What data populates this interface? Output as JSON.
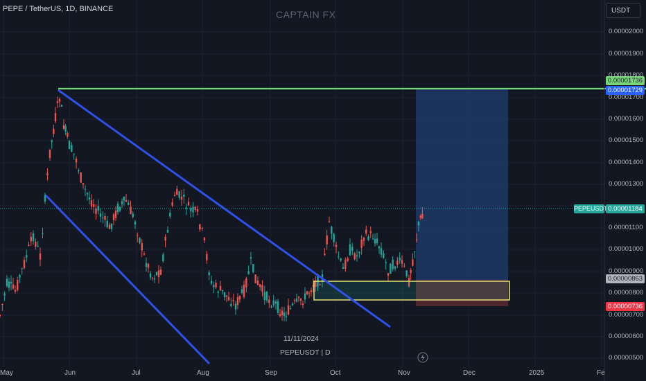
{
  "header": {
    "symbol_title": "PEPE / TetherUS, 1D, BINANCE",
    "watermark": "CAPTAIN FX",
    "currency": "USDT"
  },
  "price_axis": {
    "labels": [
      "0.00002000",
      "0.00001900",
      "0.00001800",
      "0.00001700",
      "0.00001600",
      "0.00001500",
      "0.00001400",
      "0.00001300",
      "0.00001100",
      "0.00001000",
      "0.00000900",
      "0.00000800",
      "0.00000700",
      "0.00000600",
      "0.00000500"
    ]
  },
  "time_axis": {
    "labels": [
      "May",
      "Jun",
      "Jul",
      "Aug",
      "Sep",
      "Oct",
      "Nov",
      "Dec",
      "2025",
      "Fe"
    ]
  },
  "price_tags": {
    "resistance": "0.00001736",
    "target": "0.00001729",
    "symbol": "PEPEUSDT",
    "last": "0.00001184",
    "entry": "0.00000863",
    "stop": "0.00000736"
  },
  "footer": {
    "date": "11/11/2024",
    "symbol_interval": "PEPEUSDT | D"
  },
  "icons": {
    "bolt": "bolt-icon"
  },
  "colors": {
    "background": "#131722",
    "up": "#26a69a",
    "down": "#ef5350",
    "trendline": "#2f50ea",
    "resistance": "#7bd67b",
    "target_zone": "#1e3a66",
    "stop_zone": "#5a2a30",
    "support_box": "#e8e07a"
  }
}
